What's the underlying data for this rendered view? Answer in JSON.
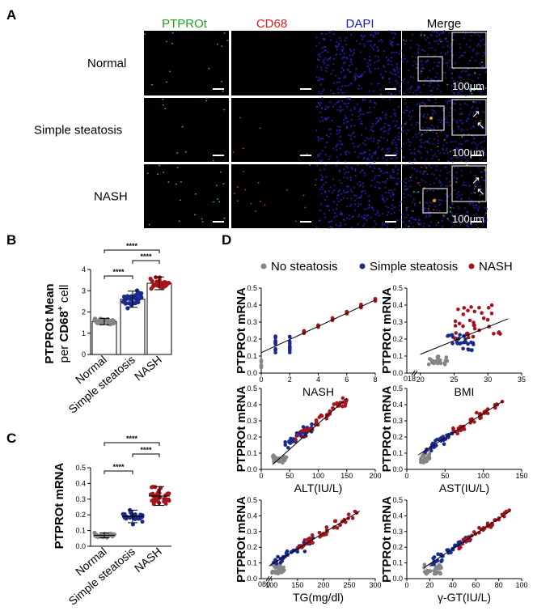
{
  "panel_labels": {
    "A": "A",
    "B": "B",
    "C": "C",
    "D": "D"
  },
  "panelA": {
    "columns": [
      {
        "label": "PTPROt",
        "color": "#1fa51f"
      },
      {
        "label": "CD68",
        "color": "#e21a1a"
      },
      {
        "label": "DAPI",
        "color": "#1a1ab4"
      },
      {
        "label": "Merge",
        "color": "#000000"
      }
    ],
    "rows": [
      "Normal",
      "Simple steatosis",
      "NASH"
    ],
    "scale_bar": "100μm"
  },
  "colors": {
    "normal": "#858585",
    "simple": "#1a2a8c",
    "nash": "#a8141c"
  },
  "chart_data": [
    {
      "id": "B",
      "type": "bar",
      "ylabel_line1": "PTPROt Mean",
      "ylabel_line2_prefix": "per CD68",
      "ylabel_sup": "+",
      "ylabel_line2_suffix": " cell",
      "categories": [
        "Normal",
        "Simple steatosis",
        "NASH"
      ],
      "values": [
        1.55,
        2.6,
        3.35
      ],
      "sd": [
        0.15,
        0.38,
        0.3
      ],
      "ylim": [
        0,
        4
      ],
      "yticks": [
        "0",
        "1",
        "2",
        "3",
        "4"
      ],
      "significance": [
        "****",
        "****",
        "****"
      ]
    },
    {
      "id": "C",
      "type": "scatter",
      "ylabel": "PTPROt mRNA",
      "categories": [
        "Normal",
        "Simple steatosis",
        "NASH"
      ],
      "means": [
        0.07,
        0.19,
        0.32
      ],
      "sd": [
        0.015,
        0.04,
        0.06
      ],
      "ylim": [
        0,
        0.5
      ],
      "yticks": [
        "0.0",
        "0.1",
        "0.2",
        "0.3",
        "0.4",
        "0.5"
      ],
      "significance": [
        "****",
        "****",
        "****"
      ]
    }
  ],
  "panelD": {
    "legend": [
      "No steatosis",
      "Simple steatosis",
      "NASH"
    ],
    "ylabel": "PTPROt mRNA",
    "yticks": [
      "0.0",
      "0.1",
      "0.2",
      "0.3",
      "0.4",
      "0.5"
    ],
    "plots": [
      {
        "xlabel": "NASH",
        "xticks": [
          "0",
          "2",
          "4",
          "6",
          "8"
        ],
        "break_label": "",
        "fit": [
          [
            0,
            0.12
          ],
          [
            8,
            0.43
          ]
        ]
      },
      {
        "xlabel": "BMI",
        "xticks": [
          "20",
          "25",
          "30",
          "35"
        ],
        "break_label": "018",
        "fit": [
          [
            20,
            0.11
          ],
          [
            33,
            0.32
          ]
        ]
      },
      {
        "xlabel": "ALT(IU/L)",
        "xticks": [
          "0",
          "50",
          "100",
          "150",
          "200"
        ],
        "break_label": "",
        "fit": [
          [
            20,
            0.03
          ],
          [
            150,
            0.44
          ]
        ]
      },
      {
        "xlabel": "AST(IU/L)",
        "xticks": [
          "0",
          "50",
          "100",
          "150"
        ],
        "break_label": "",
        "fit": [
          [
            15,
            0.09
          ],
          [
            125,
            0.42
          ]
        ]
      },
      {
        "xlabel": "TG(mg/dl)",
        "xticks": [
          "100",
          "150",
          "200",
          "250",
          "300"
        ],
        "break_label": "080",
        "fit": [
          [
            95,
            0.08
          ],
          [
            270,
            0.43
          ]
        ]
      },
      {
        "xlabel": "γ-GT(IU/L)",
        "xticks": [
          "0",
          "20",
          "40",
          "60",
          "80",
          "100"
        ],
        "break_label": "",
        "fit": [
          [
            15,
            0.07
          ],
          [
            90,
            0.43
          ]
        ]
      }
    ]
  }
}
